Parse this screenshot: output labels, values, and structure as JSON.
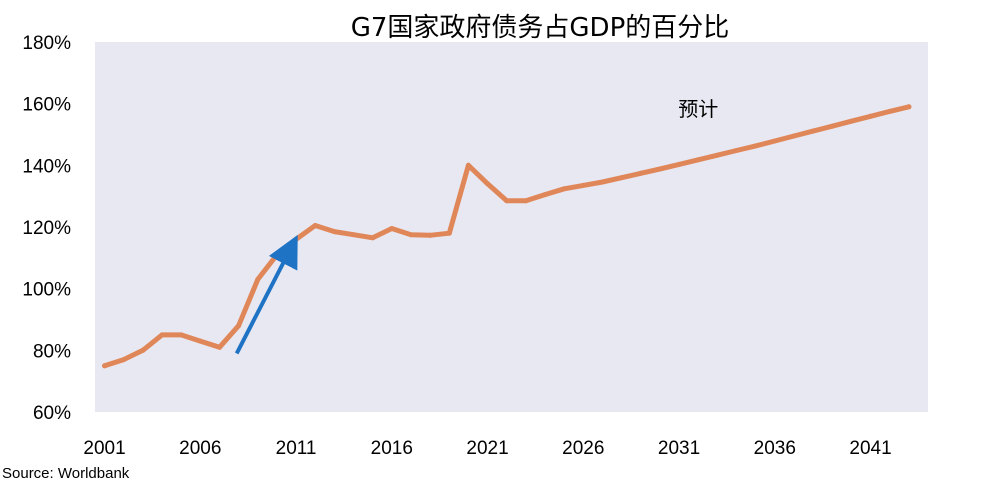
{
  "chart_data": {
    "type": "line",
    "title": "G7国家政府债务占GDP的百分比",
    "source": "Source: Worldbank",
    "xlabel": "",
    "ylabel": "",
    "xlim": [
      2000.5,
      2044
    ],
    "ylim": [
      60,
      180
    ],
    "x_ticks": [
      2001,
      2006,
      2011,
      2016,
      2021,
      2026,
      2031,
      2036,
      2041
    ],
    "y_ticks": [
      60,
      80,
      100,
      120,
      140,
      160,
      180
    ],
    "y_tick_labels": [
      "60%",
      "80%",
      "100%",
      "120%",
      "140%",
      "160%",
      "180%"
    ],
    "grid": false,
    "background": "#e8e8f2",
    "series": [
      {
        "color": "#e0875a",
        "x": [
          2001,
          2002,
          2003,
          2004,
          2005,
          2006,
          2007,
          2008,
          2009,
          2010,
          2011,
          2012,
          2013,
          2014,
          2015,
          2016,
          2017,
          2018,
          2019,
          2020,
          2021,
          2022,
          2023,
          2024,
          2025,
          2026,
          2027,
          2028,
          2029,
          2030,
          2031,
          2032,
          2033,
          2034,
          2035,
          2036,
          2037,
          2038,
          2039,
          2040,
          2041,
          2042,
          2043
        ],
        "y": [
          75,
          77,
          80,
          85,
          85,
          83,
          81,
          88,
          103,
          111,
          116,
          120.5,
          118.5,
          117.5,
          116.5,
          119.5,
          117.5,
          117.3,
          118,
          140,
          134,
          128.5,
          128.5,
          130.5,
          132.4,
          133.5,
          134.6,
          136,
          137.4,
          138.8,
          140.3,
          141.8,
          143.3,
          144.8,
          146.3,
          147.9,
          149.5,
          151.1,
          152.7,
          154.3,
          155.9,
          157.5,
          159
        ]
      }
    ],
    "annotations": [
      {
        "text": "预计",
        "x": 2032,
        "y": 156
      },
      {
        "type": "arrow",
        "color": "#1f73c4",
        "from": [
          2007.9,
          79
        ],
        "to": [
          2010.8,
          114
        ]
      }
    ]
  }
}
